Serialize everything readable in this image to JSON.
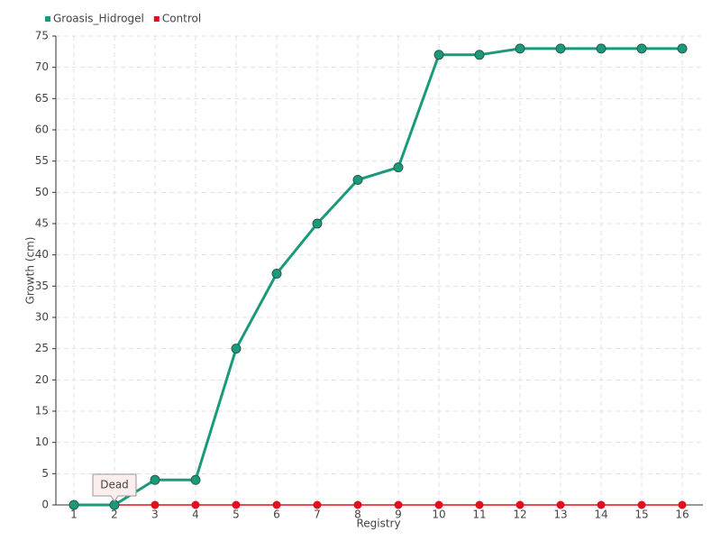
{
  "chart_data": {
    "type": "line",
    "categories": [
      "1",
      "2",
      "3",
      "4",
      "5",
      "6",
      "7",
      "8",
      "9",
      "10",
      "11",
      "12",
      "13",
      "14",
      "15",
      "16"
    ],
    "series": [
      {
        "name": "Groasis_Hidrogel",
        "color": "#1a9a7a",
        "values": [
          0,
          0,
          4,
          4,
          25,
          37,
          45,
          52,
          54,
          72,
          72,
          73,
          73,
          73,
          73,
          73
        ]
      },
      {
        "name": "Control",
        "color": "#e0101e",
        "values": [
          0,
          0,
          0,
          0,
          0,
          0,
          0,
          0,
          0,
          0,
          0,
          0,
          0,
          0,
          0,
          0
        ]
      }
    ],
    "ylim": [
      0,
      75
    ],
    "yticks": [
      0,
      5,
      10,
      15,
      20,
      25,
      30,
      35,
      40,
      45,
      50,
      55,
      60,
      65,
      70,
      75
    ],
    "y_label": "Growth (cm)",
    "x_label": "Registry",
    "annotation": {
      "text": "Dead",
      "x": "2"
    },
    "grid": true,
    "legend": "top-left"
  }
}
